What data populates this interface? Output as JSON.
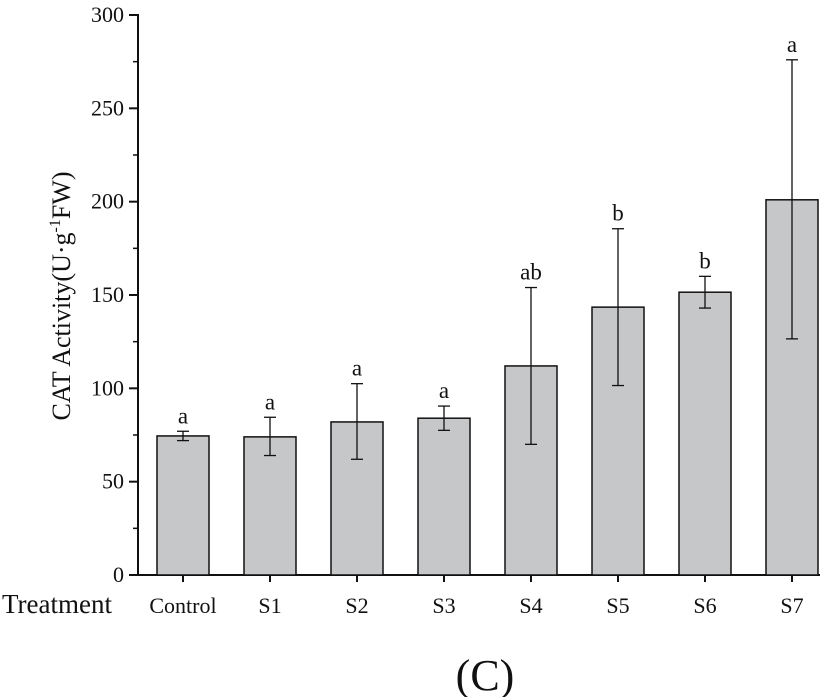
{
  "chart_data": {
    "type": "bar",
    "categories": [
      "Control",
      "S1",
      "S2",
      "S3",
      "S4",
      "S5",
      "S6",
      "S7"
    ],
    "values": [
      74.5,
      74,
      82,
      84,
      112,
      143.5,
      151.5,
      201
    ],
    "error_low": [
      72,
      64,
      62,
      77.5,
      70,
      101.5,
      143,
      126.5
    ],
    "error_high": [
      77,
      84.5,
      102.5,
      90.5,
      154,
      185.5,
      160,
      276
    ],
    "significance": [
      "a",
      "a",
      "a",
      "a",
      "ab",
      "b",
      "b",
      "a"
    ],
    "xlabel": "Treatment",
    "ylabel": "CAT Activity(U·g",
    "ylabel_superscript": "-1",
    "ylabel_suffix": "FW)",
    "ylim": [
      0,
      300
    ],
    "yticks": [
      0,
      50,
      100,
      150,
      200,
      250,
      300
    ],
    "bar_color": "#c6c7c9",
    "grid": false,
    "panel_label": "(C)"
  }
}
